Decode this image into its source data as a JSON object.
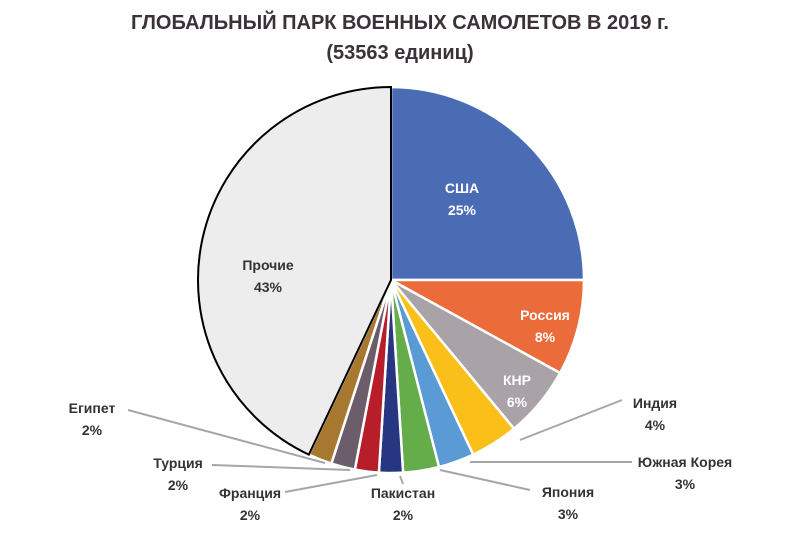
{
  "chart_data": {
    "type": "pie",
    "title": "ГЛОБАЛЬНЫЙ ПАРК ВОЕННЫХ САМОЛЕТОВ В 2019 г.",
    "subtitle": "(53563 единиц)",
    "slices": [
      {
        "label": "США",
        "value": 25,
        "value_label": "25%",
        "color": "#4a6cb5"
      },
      {
        "label": "Россия",
        "value": 8,
        "value_label": "8%",
        "color": "#ec6b3a"
      },
      {
        "label": "КНР",
        "value": 6,
        "value_label": "6%",
        "color": "#a9a3a8"
      },
      {
        "label": "Индия",
        "value": 4,
        "value_label": "4%",
        "color": "#fbbf1a"
      },
      {
        "label": "Южная Корея",
        "value": 3,
        "value_label": "3%",
        "color": "#5b9bd5"
      },
      {
        "label": "Япония",
        "value": 3,
        "value_label": "3%",
        "color": "#65ad4a"
      },
      {
        "label": "Пакистан",
        "value": 2,
        "value_label": "2%",
        "color": "#263680"
      },
      {
        "label": "Франция",
        "value": 2,
        "value_label": "2%",
        "color": "#b81e2a"
      },
      {
        "label": "Турция",
        "value": 2,
        "value_label": "2%",
        "color": "#6b5d6a"
      },
      {
        "label": "Египет",
        "value": 2,
        "value_label": "2%",
        "color": "#a97830"
      },
      {
        "label": "Прочие",
        "value": 43,
        "value_label": "43%",
        "color": "#ededed"
      }
    ]
  }
}
